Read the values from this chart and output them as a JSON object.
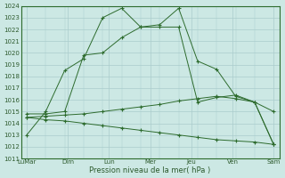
{
  "background_color": "#cce8e4",
  "grid_color": "#aacccc",
  "line_color": "#2d6b2d",
  "xlabel": "Pression niveau de la mer( hPa )",
  "xtick_labels": [
    "LuMar",
    "Dim",
    "Lun",
    "Mer",
    "Jeu",
    "Ven",
    "Sam"
  ],
  "ylim": [
    1011,
    1024
  ],
  "yticks": [
    1011,
    1012,
    1013,
    1014,
    1015,
    1016,
    1017,
    1018,
    1019,
    1020,
    1021,
    1022,
    1023,
    1024
  ],
  "lines": [
    {
      "x": [
        0,
        1,
        2,
        3,
        4,
        5,
        6,
        7,
        8,
        9,
        10,
        11,
        12,
        13
      ],
      "y": [
        1013.0,
        1015.0,
        1018.5,
        1019.5,
        1023.0,
        1023.8,
        1022.2,
        1022.4,
        1023.8,
        1019.3,
        1018.6,
        1016.3,
        1015.8,
        1012.2
      ]
    },
    {
      "x": [
        0,
        1,
        2,
        3,
        4,
        5,
        6,
        7,
        8,
        9,
        10,
        11,
        12,
        13
      ],
      "y": [
        1014.8,
        1014.8,
        1015.0,
        1019.8,
        1020.0,
        1021.3,
        1022.2,
        1022.2,
        1022.2,
        1015.8,
        1016.2,
        1016.4,
        1015.8,
        1012.2
      ]
    },
    {
      "x": [
        0,
        1,
        2,
        3,
        4,
        5,
        6,
        7,
        8,
        9,
        10,
        11,
        12,
        13
      ],
      "y": [
        1014.5,
        1014.6,
        1014.7,
        1014.8,
        1015.0,
        1015.2,
        1015.4,
        1015.6,
        1015.9,
        1016.1,
        1016.3,
        1016.1,
        1015.8,
        1015.0
      ]
    },
    {
      "x": [
        0,
        1,
        2,
        3,
        4,
        5,
        6,
        7,
        8,
        9,
        10,
        11,
        12,
        13
      ],
      "y": [
        1014.5,
        1014.3,
        1014.2,
        1014.0,
        1013.8,
        1013.6,
        1013.4,
        1013.2,
        1013.0,
        1012.8,
        1012.6,
        1012.5,
        1012.4,
        1012.2
      ]
    }
  ],
  "n_points": 14
}
